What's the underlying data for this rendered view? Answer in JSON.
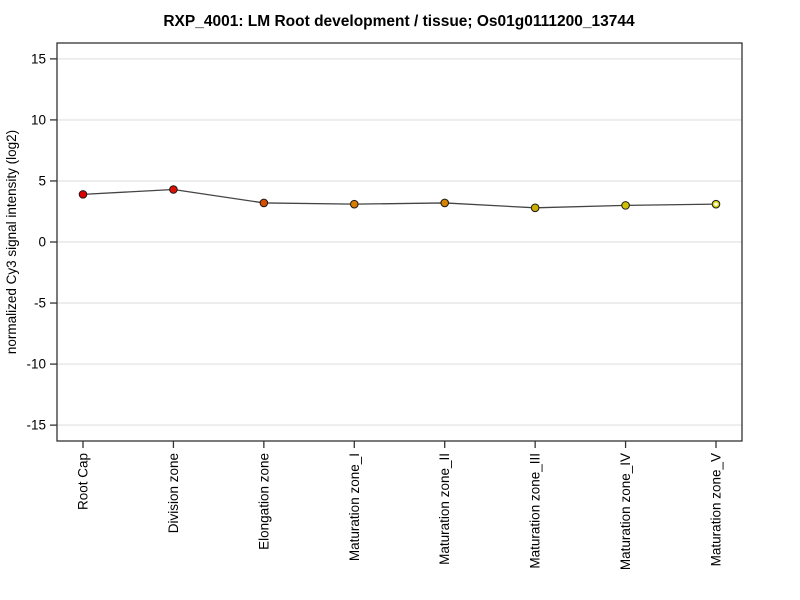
{
  "chart_data": {
    "type": "line",
    "title": "RXP_4001: LM Root development / tissue; Os01g0111200_13744",
    "ylabel": "normalized Cy3 signal intensity (log2)",
    "xlabel": "",
    "categories": [
      "Root Cap",
      "Division zone",
      "Elongation zone",
      "Maturation zone_I",
      "Maturation zone_II",
      "Maturation zone_III",
      "Maturation zone_IV",
      "Maturation zone_V"
    ],
    "series": [
      {
        "name": "normalized Cy3 signal intensity (log2)",
        "values": [
          3.9,
          4.3,
          3.2,
          3.1,
          3.2,
          2.8,
          3.0,
          3.1
        ]
      }
    ],
    "point_colors": [
      "#dc0000",
      "#dc1000",
      "#d84e00",
      "#d87d00",
      "#d88300",
      "#ccae00",
      "#d2c100",
      "#d8d400"
    ],
    "open_points": [
      false,
      false,
      false,
      false,
      false,
      false,
      false,
      true
    ],
    "ylim": [
      -16.3,
      16.3
    ],
    "yticks": [
      15,
      10,
      5,
      0,
      -5,
      -10,
      -15
    ],
    "x_tick_label_rotation": -90,
    "grid": "horizontal-only",
    "legend_position": "none",
    "styles": {
      "line_color": "#444444",
      "grid_color": "#ededed",
      "frame_color": "#333333",
      "point_border": "#1a1a1a",
      "background": "#ffffff",
      "text_color": "#000000"
    }
  }
}
